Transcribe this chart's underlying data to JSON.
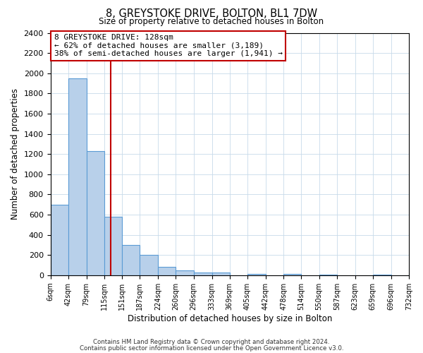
{
  "title": "8, GREYSTOKE DRIVE, BOLTON, BL1 7DW",
  "subtitle": "Size of property relative to detached houses in Bolton",
  "xlabel": "Distribution of detached houses by size in Bolton",
  "ylabel": "Number of detached properties",
  "bin_edges": [
    6,
    42,
    79,
    115,
    151,
    187,
    224,
    260,
    296,
    333,
    369,
    405,
    442,
    478,
    514,
    550,
    587,
    623,
    659,
    696,
    732
  ],
  "bin_counts": [
    700,
    1950,
    1230,
    580,
    300,
    200,
    80,
    45,
    30,
    25,
    0,
    15,
    0,
    10,
    0,
    5,
    0,
    0,
    5,
    0
  ],
  "bar_color": "#b8d0ea",
  "bar_edge_color": "#5b9bd5",
  "property_line_x": 128,
  "property_line_color": "#c00000",
  "annotation_line1": "8 GREYSTOKE DRIVE: 128sqm",
  "annotation_line2": "← 62% of detached houses are smaller (3,189)",
  "annotation_line3": "38% of semi-detached houses are larger (1,941) →",
  "annotation_box_color": "#ffffff",
  "annotation_box_edge_color": "#c00000",
  "ylim": [
    0,
    2400
  ],
  "yticks": [
    0,
    200,
    400,
    600,
    800,
    1000,
    1200,
    1400,
    1600,
    1800,
    2000,
    2200,
    2400
  ],
  "footer_line1": "Contains HM Land Registry data © Crown copyright and database right 2024.",
  "footer_line2": "Contains public sector information licensed under the Open Government Licence v3.0.",
  "background_color": "#ffffff",
  "grid_color": "#c8daea",
  "tick_labels": [
    "6sqm",
    "42sqm",
    "79sqm",
    "115sqm",
    "151sqm",
    "187sqm",
    "224sqm",
    "260sqm",
    "296sqm",
    "333sqm",
    "369sqm",
    "405sqm",
    "442sqm",
    "478sqm",
    "514sqm",
    "550sqm",
    "587sqm",
    "623sqm",
    "659sqm",
    "696sqm",
    "732sqm"
  ]
}
